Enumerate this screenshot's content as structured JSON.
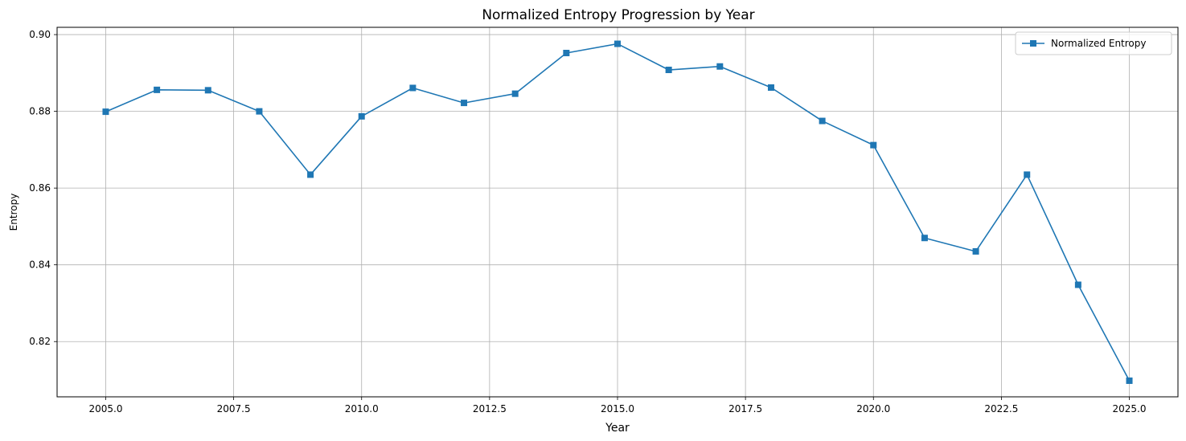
{
  "chart_data": {
    "type": "line",
    "title": "Normalized Entropy Progression by Year",
    "xlabel": "Year",
    "ylabel": "Entropy",
    "xlim": [
      2004.05,
      2025.95
    ],
    "ylim": [
      0.8056,
      0.9019
    ],
    "xticks": [
      2005.0,
      2007.5,
      2010.0,
      2012.5,
      2015.0,
      2017.5,
      2020.0,
      2022.5,
      2025.0
    ],
    "xtick_labels": [
      "2005.0",
      "2007.5",
      "2010.0",
      "2012.5",
      "2015.0",
      "2017.5",
      "2020.0",
      "2022.5",
      "2025.0"
    ],
    "yticks": [
      0.82,
      0.84,
      0.86,
      0.88,
      0.9
    ],
    "ytick_labels": [
      "0.82",
      "0.84",
      "0.86",
      "0.88",
      "0.90"
    ],
    "grid": true,
    "legend_position": "top-right",
    "series": [
      {
        "name": "Normalized Entropy",
        "color": "#1f77b4",
        "marker": "square",
        "x": [
          2005,
          2006,
          2007,
          2008,
          2009,
          2010,
          2011,
          2012,
          2013,
          2014,
          2015,
          2016,
          2017,
          2018,
          2019,
          2020,
          2021,
          2022,
          2023,
          2024,
          2025
        ],
        "y": [
          0.8799,
          0.8856,
          0.8855,
          0.88,
          0.8635,
          0.8787,
          0.8861,
          0.8822,
          0.8846,
          0.8952,
          0.8976,
          0.8908,
          0.8917,
          0.8862,
          0.8775,
          0.8712,
          0.847,
          0.8435,
          0.8635,
          0.8348,
          0.8098
        ]
      }
    ]
  }
}
